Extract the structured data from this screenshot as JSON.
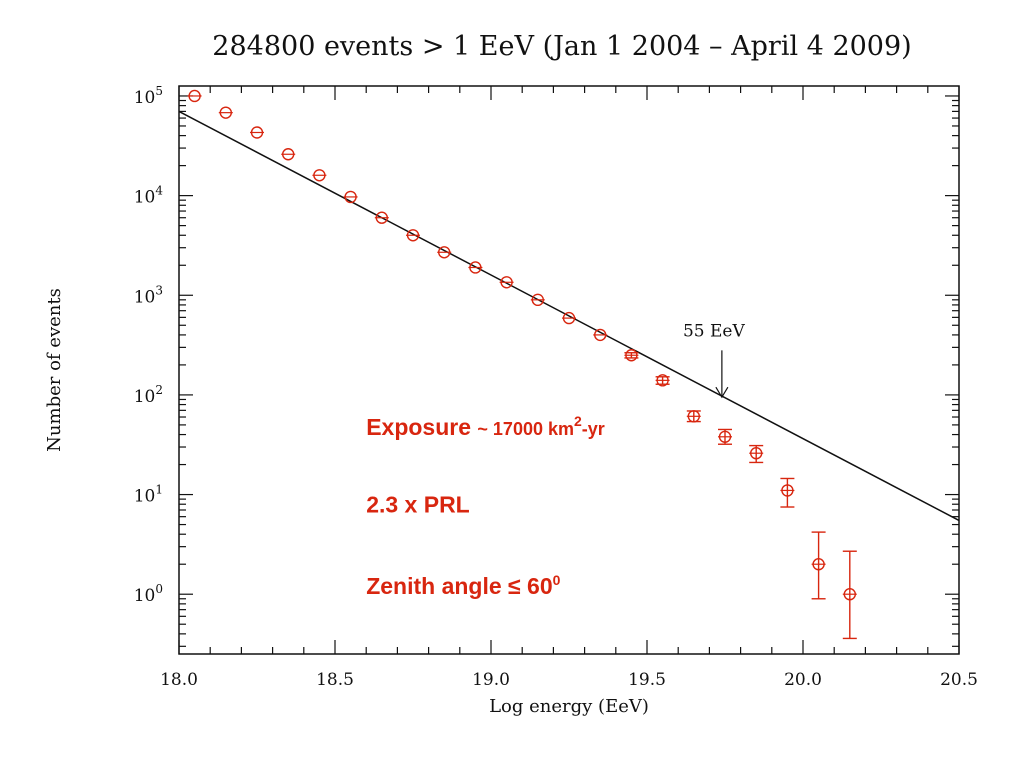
{
  "chart_data": {
    "type": "scatter",
    "title": "284800 events > 1 EeV  (Jan 1 2004 – April 4 2009)",
    "xlabel": "Log energy (EeV)",
    "ylabel": "Number of events",
    "xlim": [
      18.0,
      20.5
    ],
    "ylim_exp": [
      -0.6,
      5.1
    ],
    "yscale": "log",
    "x_ticks": [
      {
        "value": 18.0,
        "label": "18.0"
      },
      {
        "value": 18.5,
        "label": "18.5"
      },
      {
        "value": 19.0,
        "label": "19.0"
      },
      {
        "value": 19.5,
        "label": "19.5"
      },
      {
        "value": 20.0,
        "label": "20.0"
      },
      {
        "value": 20.5,
        "label": "20.5"
      }
    ],
    "y_ticks": [
      {
        "exp": 0,
        "base": "10",
        "sup": "0"
      },
      {
        "exp": 1,
        "base": "10",
        "sup": "1"
      },
      {
        "exp": 2,
        "base": "10",
        "sup": "2"
      },
      {
        "exp": 3,
        "base": "10",
        "sup": "3"
      },
      {
        "exp": 4,
        "base": "10",
        "sup": "4"
      },
      {
        "exp": 5,
        "base": "10",
        "sup": "5"
      }
    ],
    "marker_color": "#d8260f",
    "line_color": "#111111",
    "points": [
      {
        "x": 18.05,
        "y": 100000,
        "lo": 100000,
        "hi": 100000
      },
      {
        "x": 18.15,
        "y": 68000,
        "lo": 68000,
        "hi": 68000
      },
      {
        "x": 18.25,
        "y": 43000,
        "lo": 43000,
        "hi": 43000
      },
      {
        "x": 18.35,
        "y": 26000,
        "lo": 26000,
        "hi": 26000
      },
      {
        "x": 18.45,
        "y": 16000,
        "lo": 16000,
        "hi": 16000
      },
      {
        "x": 18.55,
        "y": 9700,
        "lo": 9700,
        "hi": 9700
      },
      {
        "x": 18.65,
        "y": 6000,
        "lo": 6000,
        "hi": 6000
      },
      {
        "x": 18.75,
        "y": 4000,
        "lo": 4000,
        "hi": 4000
      },
      {
        "x": 18.85,
        "y": 2700,
        "lo": 2700,
        "hi": 2700
      },
      {
        "x": 18.95,
        "y": 1900,
        "lo": 1900,
        "hi": 1900
      },
      {
        "x": 19.05,
        "y": 1350,
        "lo": 1350,
        "hi": 1350
      },
      {
        "x": 19.15,
        "y": 900,
        "lo": 900,
        "hi": 900
      },
      {
        "x": 19.25,
        "y": 590,
        "lo": 590,
        "hi": 590
      },
      {
        "x": 19.35,
        "y": 400,
        "lo": 400,
        "hi": 400
      },
      {
        "x": 19.45,
        "y": 250,
        "lo": 235,
        "hi": 265
      },
      {
        "x": 19.55,
        "y": 140,
        "lo": 128,
        "hi": 152
      },
      {
        "x": 19.65,
        "y": 61,
        "lo": 54,
        "hi": 69
      },
      {
        "x": 19.75,
        "y": 38,
        "lo": 32,
        "hi": 45
      },
      {
        "x": 19.85,
        "y": 26,
        "lo": 21,
        "hi": 31
      },
      {
        "x": 19.95,
        "y": 11,
        "lo": 7.5,
        "hi": 14.5
      },
      {
        "x": 20.05,
        "y": 2.0,
        "lo": 0.9,
        "hi": 4.2
      },
      {
        "x": 20.15,
        "y": 1.0,
        "lo": 0.36,
        "hi": 2.7
      }
    ],
    "fit_line": {
      "x": [
        18.0,
        20.5
      ],
      "y": [
        70000,
        5.5
      ]
    },
    "arrow": {
      "x": 19.74,
      "y_from": 280,
      "y_to": 95,
      "label": "55 EeV"
    },
    "annotations": [
      {
        "id": "exposure",
        "x": 18.6,
        "y_exp": 1.6,
        "parts": [
          {
            "text": "Exposure  ",
            "size": "normal"
          },
          {
            "text": "~ 17000 km",
            "size": "small"
          },
          {
            "text": "2",
            "size": "sup"
          },
          {
            "text": "-yr",
            "size": "small"
          }
        ]
      },
      {
        "id": "prl",
        "x": 18.6,
        "y_exp": 0.82,
        "parts": [
          {
            "text": "2.3 x PRL",
            "size": "normal"
          }
        ]
      },
      {
        "id": "zenith",
        "x": 18.6,
        "y_exp": 0.0,
        "parts": [
          {
            "text": "Zenith angle ≤ 60",
            "size": "normal"
          },
          {
            "text": "0",
            "size": "sup"
          }
        ]
      }
    ]
  }
}
